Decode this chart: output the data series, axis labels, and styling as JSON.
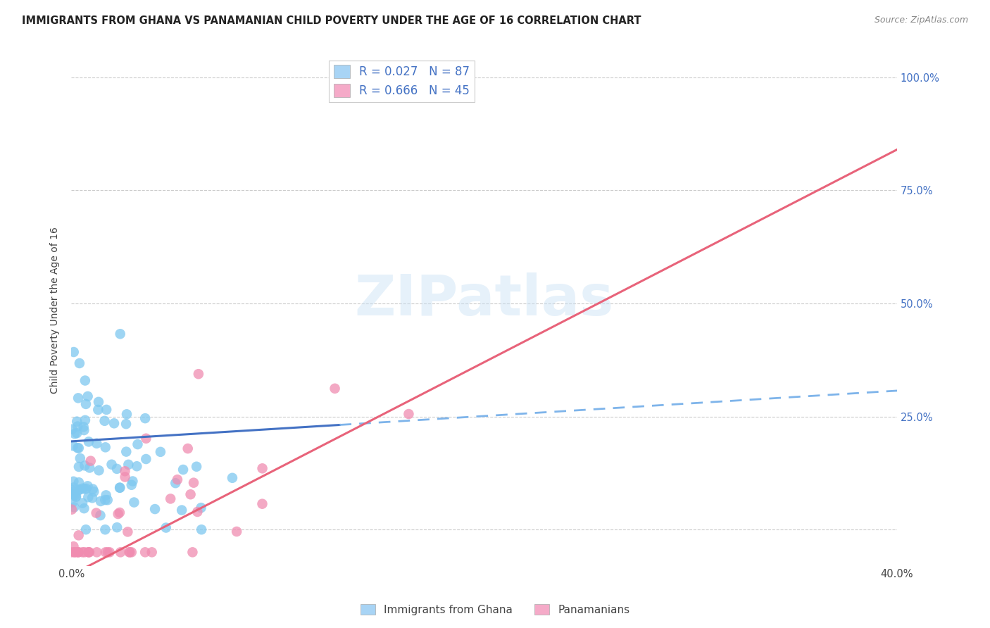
{
  "title": "IMMIGRANTS FROM GHANA VS PANAMANIAN CHILD POVERTY UNDER THE AGE OF 16 CORRELATION CHART",
  "source": "Source: ZipAtlas.com",
  "ylabel": "Child Poverty Under the Age of 16",
  "ytick_vals": [
    0.0,
    0.25,
    0.5,
    0.75,
    1.0
  ],
  "ytick_labels": [
    "",
    "25.0%",
    "50.0%",
    "75.0%",
    "100.0%"
  ],
  "xtick_vals": [
    0.0,
    0.08,
    0.16,
    0.24,
    0.32,
    0.4
  ],
  "xtick_labels": [
    "0.0%",
    "",
    "",
    "",
    "",
    "40.0%"
  ],
  "xlim": [
    0.0,
    0.4
  ],
  "ylim": [
    -0.08,
    1.05
  ],
  "watermark": "ZIPatlas",
  "legend_labels_top": [
    "R = 0.027   N = 87",
    "R = 0.666   N = 45"
  ],
  "legend_colors_top": [
    "#a8d4f5",
    "#f5aac8"
  ],
  "legend_labels_bottom": [
    "Immigrants from Ghana",
    "Panamanians"
  ],
  "background_color": "#ffffff",
  "grid_color": "#cccccc",
  "scatter_color_ghana": "#7ec8f0",
  "scatter_color_panama": "#f08cb0",
  "line_color_ghana_solid": "#4472c4",
  "line_color_ghana_dashed": "#7eb4ea",
  "line_color_panama": "#e8637a",
  "ghana_line_solid_start": 0.0,
  "ghana_line_solid_end": 0.13,
  "ghana_line_intercept": 0.195,
  "ghana_line_slope": 0.28,
  "panama_line_intercept": -0.1,
  "panama_line_slope": 2.35,
  "seed_ghana": 42,
  "seed_panama": 99,
  "ghana_N": 87,
  "panama_N": 45
}
